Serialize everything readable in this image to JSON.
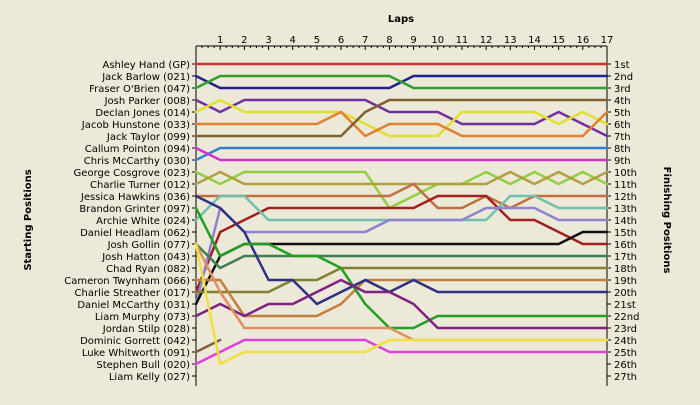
{
  "chart_data": {
    "type": "line",
    "title": "",
    "top_axis_title": "Laps",
    "left_axis_title": "Starting Positions",
    "right_axis_title": "Finishing Positions",
    "laps": [
      0,
      1,
      2,
      3,
      4,
      5,
      6,
      7,
      8,
      9,
      10,
      11,
      12,
      13,
      14,
      15,
      16,
      17
    ],
    "lap_tick_labels": [
      "1",
      "2",
      "3",
      "4",
      "5",
      "6",
      "7",
      "8",
      "9",
      "10",
      "11",
      "12",
      "13",
      "14",
      "15",
      "16",
      "17"
    ],
    "y_range": [
      1,
      27
    ],
    "grid": false,
    "starting_labels": [
      "Ashley Hand (GP)",
      "Jack Barlow (021)",
      "Fraser O'Brien (047)",
      "Josh Parker (008)",
      "Declan Jones (014)",
      "Jacob Hunstone (033)",
      "Jack Taylor (099)",
      "Callum Pointon (094)",
      "Chris McCarthy (030)",
      "George Cosgrove (023)",
      "Charlie Turner (012)",
      "Jessica Hawkins (036)",
      "Brandon Grinter (097)",
      "Archie White (024)",
      "Daniel Headlam (062)",
      "Josh Gollin (077)",
      "Josh Hatton (043)",
      "Chad Ryan (082)",
      "Cameron Twynham (066)",
      "Charlie Streather (017)",
      "Daniel McCarthy (031)",
      "Liam Murphy (073)",
      "Jordan Stilp (028)",
      "Dominic Gorrett (042)",
      "Luke Whitworth (091)",
      "Stephen Bull (020)",
      "Liam Kelly (027)"
    ],
    "finishing_labels": [
      "1st",
      "2nd",
      "3rd",
      "4th",
      "5th",
      "6th",
      "7th",
      "8th",
      "9th",
      "10th",
      "11th",
      "12th",
      "13th",
      "14th",
      "15th",
      "16th",
      "17th",
      "18th",
      "19th",
      "20th",
      "21st",
      "22nd",
      "23rd",
      "24th",
      "25th",
      "26th",
      "27th"
    ],
    "series": [
      {
        "color": "#d03030",
        "positions": [
          1,
          1,
          1,
          1,
          1,
          1,
          1,
          1,
          1,
          1,
          1,
          1,
          1,
          1,
          1,
          1,
          1,
          1
        ]
      },
      {
        "color": "#202090",
        "positions": [
          2,
          3,
          3,
          3,
          3,
          3,
          3,
          3,
          3,
          2,
          2,
          2,
          2,
          2,
          2,
          2,
          2,
          2
        ]
      },
      {
        "color": "#30a030",
        "positions": [
          3,
          2,
          2,
          2,
          2,
          2,
          2,
          2,
          2,
          3,
          3,
          3,
          3,
          3,
          3,
          3,
          3,
          3
        ]
      },
      {
        "color": "#7030a0",
        "positions": [
          4,
          5,
          4,
          4,
          4,
          4,
          4,
          4,
          5,
          5,
          5,
          6,
          6,
          6,
          6,
          5,
          6,
          7
        ]
      },
      {
        "color": "#e0e030",
        "positions": [
          5,
          4,
          5,
          5,
          5,
          5,
          5,
          6,
          7,
          7,
          7,
          5,
          5,
          5,
          5,
          6,
          5,
          6
        ]
      },
      {
        "color": "#e08030",
        "positions": [
          6,
          6,
          6,
          6,
          6,
          6,
          5,
          7,
          6,
          6,
          6,
          7,
          7,
          7,
          7,
          7,
          7,
          5
        ]
      },
      {
        "color": "#806030",
        "positions": [
          7,
          7,
          7,
          7,
          7,
          7,
          7,
          5,
          4,
          4,
          4,
          4,
          4,
          4,
          4,
          4,
          4,
          4
        ]
      },
      {
        "color": "#3080d0",
        "positions": [
          9,
          8,
          8,
          8,
          8,
          8,
          8,
          8,
          8,
          8,
          8,
          8,
          8,
          8,
          8,
          8,
          8,
          8
        ]
      },
      {
        "color": "#d030d0",
        "positions": [
          8,
          9,
          9,
          9,
          9,
          9,
          9,
          9,
          9,
          9,
          9,
          9,
          9,
          9,
          9,
          9,
          9,
          9
        ]
      },
      {
        "color": "#90d040",
        "positions": [
          10,
          11,
          10,
          10,
          10,
          10,
          10,
          10,
          13,
          12,
          11,
          11,
          10,
          11,
          10,
          11,
          10,
          11
        ]
      },
      {
        "color": "#b0a040",
        "positions": [
          11,
          10,
          11,
          11,
          11,
          11,
          11,
          11,
          11,
          11,
          11,
          11,
          11,
          10,
          11,
          10,
          11,
          10
        ]
      },
      {
        "color": "#c07040",
        "positions": [
          12,
          12,
          12,
          12,
          12,
          12,
          12,
          12,
          12,
          11,
          13,
          13,
          12,
          13,
          12,
          12,
          12,
          12
        ]
      },
      {
        "color": "#a02020",
        "positions": [
          20,
          15,
          14,
          13,
          13,
          13,
          13,
          13,
          13,
          13,
          12,
          12,
          12,
          14,
          14,
          15,
          16,
          16
        ]
      },
      {
        "color": "#70c0b0",
        "positions": [
          14,
          12,
          12,
          14,
          14,
          14,
          14,
          14,
          14,
          14,
          14,
          14,
          14,
          12,
          12,
          13,
          13,
          13
        ]
      },
      {
        "color": "#9080d0",
        "positions": [
          21,
          13,
          15,
          15,
          15,
          15,
          15,
          15,
          14,
          14,
          14,
          14,
          13,
          13,
          13,
          14,
          14,
          14
        ]
      },
      {
        "color": "#101010",
        "positions": [
          21,
          17,
          16,
          16,
          16,
          16,
          16,
          16,
          16,
          16,
          16,
          16,
          16,
          16,
          16,
          16,
          15,
          15
        ]
      },
      {
        "color": "#408050",
        "positions": [
          16,
          18,
          17,
          17,
          17,
          17,
          17,
          17,
          17,
          17,
          17,
          17,
          17,
          17,
          17,
          17,
          17,
          17
        ]
      },
      {
        "color": "#808030",
        "positions": [
          20,
          20,
          20,
          20,
          19,
          19,
          18,
          18,
          18,
          18,
          18,
          18,
          18,
          18,
          18,
          18,
          18,
          18
        ]
      },
      {
        "color": "#c08040",
        "positions": [
          19,
          19,
          22,
          22,
          22,
          22,
          21,
          19,
          19,
          19,
          19,
          19,
          19,
          19,
          19,
          19,
          19,
          19
        ]
      },
      {
        "color": "#303080",
        "positions": [
          12,
          13,
          15,
          19,
          19,
          21,
          20,
          19,
          20,
          19,
          20,
          20,
          20,
          20,
          20,
          20,
          20,
          20
        ]
      },
      {
        "color": "#20a020",
        "positions": [
          13,
          17,
          16,
          16,
          17,
          17,
          18,
          21,
          23,
          23,
          22,
          22,
          22,
          22,
          22,
          22,
          22,
          22
        ]
      },
      {
        "color": "#802080",
        "positions": [
          22,
          21,
          22,
          21,
          21,
          20,
          19,
          20,
          20,
          21,
          23,
          23,
          23,
          23,
          23,
          23,
          23,
          23
        ]
      },
      {
        "color": "#e09060",
        "positions": [
          16,
          20,
          23,
          23,
          23,
          23,
          23,
          23,
          23,
          24,
          24,
          24,
          24,
          24,
          24,
          24,
          24,
          24
        ]
      },
      {
        "color": "#806040",
        "positions": [
          25,
          24
        ]
      },
      {
        "color": "#e040e0",
        "positions": [
          26,
          25,
          24,
          24,
          24,
          24,
          24,
          24,
          25,
          25,
          25,
          25,
          25,
          25,
          25,
          25,
          25,
          25
        ]
      },
      {
        "color": "#f0e040",
        "positions": [
          16,
          26,
          25,
          25,
          25,
          25,
          25,
          25,
          24,
          24,
          24,
          24,
          24,
          24,
          24,
          24,
          24,
          24
        ]
      }
    ]
  }
}
